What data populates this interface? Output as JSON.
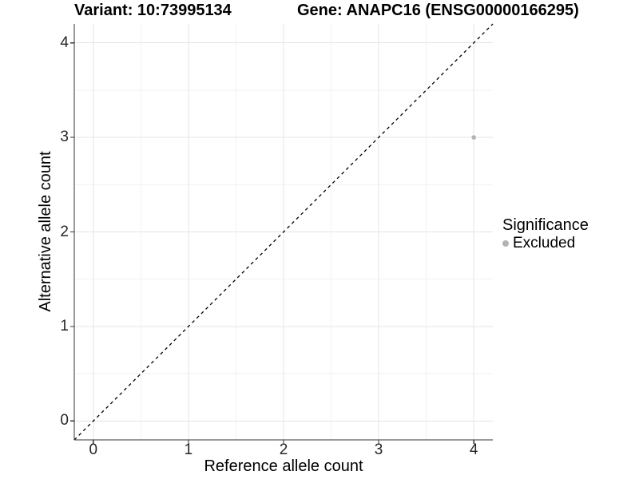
{
  "titles": {
    "left": "Variant: 10:73995134",
    "right": "Gene: ANAPC16 (ENSG00000166295)"
  },
  "chart_data": {
    "type": "scatter",
    "title_left": "Variant: 10:73995134",
    "title_right": "Gene: ANAPC16 (ENSG00000166295)",
    "xlabel": "Reference allele count",
    "ylabel": "Alternative allele count",
    "xlim": [
      -0.2,
      4.2
    ],
    "ylim": [
      -0.2,
      4.2
    ],
    "x_ticks": [
      0,
      1,
      2,
      3,
      4
    ],
    "y_ticks": [
      0,
      1,
      2,
      3,
      4
    ],
    "x_minor_gridlines": [
      0.5,
      1.5,
      2.5,
      3.5
    ],
    "y_minor_gridlines": [
      0.5,
      1.5,
      2.5,
      3.5
    ],
    "grid": "major and minor, light gray on white panel",
    "identity_line": {
      "style": "dashed",
      "color": "#000000",
      "from": [
        -0.2,
        -0.2
      ],
      "to": [
        4.2,
        4.2
      ]
    },
    "series": [
      {
        "name": "Excluded",
        "color": "#b3b3b3",
        "points": [
          {
            "x": 4,
            "y": 3
          }
        ]
      }
    ],
    "legend": {
      "position": "right",
      "title": "Significance",
      "items": [
        {
          "label": "Excluded",
          "color": "#b3b3b3"
        }
      ]
    },
    "colors": {
      "axis_line": "#333333",
      "grid_major": "#e4e4e4",
      "grid_minor": "#f2f2f2",
      "tick_text": "#262626",
      "point": "#b3b3b3",
      "background": "#ffffff"
    }
  }
}
